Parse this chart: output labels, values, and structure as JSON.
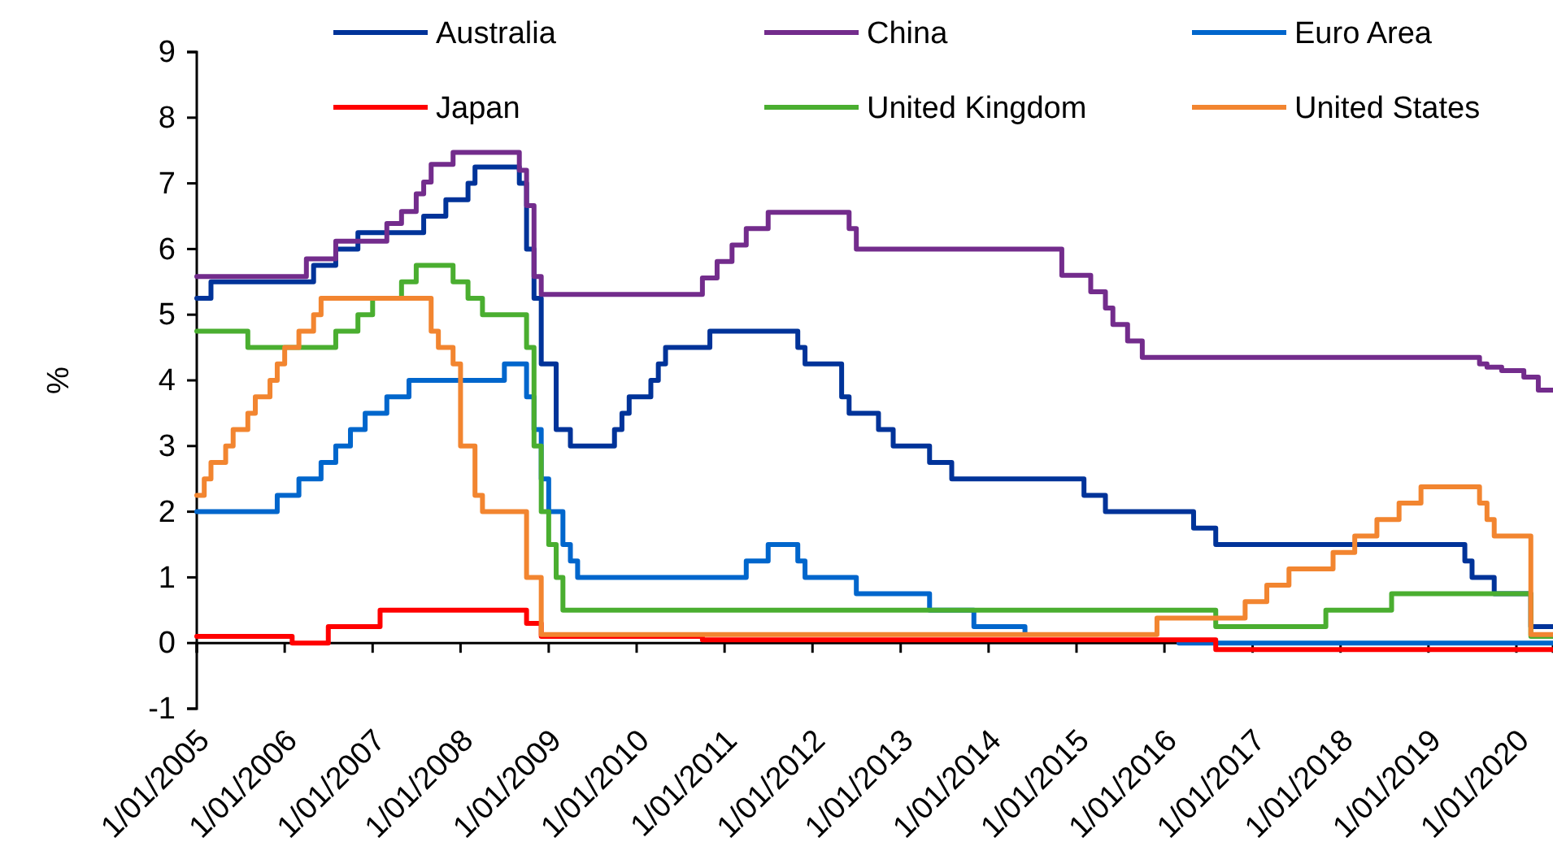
{
  "chart_data": {
    "type": "step",
    "ylabel": "%",
    "xlim": [
      "2005-01",
      "2020-06"
    ],
    "ylim": [
      -1,
      9
    ],
    "yticks": [
      -1,
      0,
      1,
      2,
      3,
      4,
      5,
      6,
      7,
      8,
      9
    ],
    "xticks": [
      {
        "value": "2005-01",
        "label": "1/01/2005"
      },
      {
        "value": "2006-01",
        "label": "1/01/2006"
      },
      {
        "value": "2007-01",
        "label": "1/01/2007"
      },
      {
        "value": "2008-01",
        "label": "1/01/2008"
      },
      {
        "value": "2009-01",
        "label": "1/01/2009"
      },
      {
        "value": "2010-01",
        "label": "1/01/2010"
      },
      {
        "value": "2011-01",
        "label": "1/01/2011"
      },
      {
        "value": "2012-01",
        "label": "1/01/2012"
      },
      {
        "value": "2013-01",
        "label": "1/01/2013"
      },
      {
        "value": "2014-01",
        "label": "1/01/2014"
      },
      {
        "value": "2015-01",
        "label": "1/01/2015"
      },
      {
        "value": "2016-01",
        "label": "1/01/2016"
      },
      {
        "value": "2017-01",
        "label": "1/01/2017"
      },
      {
        "value": "2018-01",
        "label": "1/01/2018"
      },
      {
        "value": "2019-01",
        "label": "1/01/2019"
      },
      {
        "value": "2020-01",
        "label": "1/01/2020"
      }
    ],
    "grid": false,
    "legend": "top",
    "marker": "none",
    "line_style": "solid",
    "series": [
      {
        "name": "Australia",
        "color": "#003399",
        "x": [
          "2005-01",
          "2005-03",
          "2006-05",
          "2006-08",
          "2006-11",
          "2007-08",
          "2007-11",
          "2008-02",
          "2008-03",
          "2008-09",
          "2008-10",
          "2008-11",
          "2008-12",
          "2009-02",
          "2009-04",
          "2009-10",
          "2009-11",
          "2009-12",
          "2010-03",
          "2010-04",
          "2010-05",
          "2010-11",
          "2011-11",
          "2011-12",
          "2012-05",
          "2012-06",
          "2012-10",
          "2012-12",
          "2013-05",
          "2013-08",
          "2015-02",
          "2015-05",
          "2016-05",
          "2016-08",
          "2019-06",
          "2019-07",
          "2019-10",
          "2020-03",
          "2020-06"
        ],
        "values": [
          5.25,
          5.5,
          5.75,
          6.0,
          6.25,
          6.5,
          6.75,
          7.0,
          7.25,
          7.0,
          6.0,
          5.25,
          4.25,
          3.25,
          3.0,
          3.25,
          3.5,
          3.75,
          4.0,
          4.25,
          4.5,
          4.75,
          4.5,
          4.25,
          3.75,
          3.5,
          3.25,
          3.0,
          2.75,
          2.5,
          2.25,
          2.0,
          1.75,
          1.5,
          1.25,
          1.0,
          0.75,
          0.25,
          0.25
        ]
      },
      {
        "name": "China",
        "color": "#732c8c",
        "x": [
          "2005-01",
          "2006-04",
          "2006-08",
          "2007-03",
          "2007-05",
          "2007-07",
          "2007-08",
          "2007-09",
          "2007-12",
          "2008-09",
          "2008-10",
          "2008-11",
          "2008-12",
          "2010-10",
          "2010-12",
          "2011-02",
          "2011-04",
          "2011-07",
          "2012-06",
          "2012-07",
          "2014-11",
          "2015-03",
          "2015-05",
          "2015-06",
          "2015-08",
          "2015-10",
          "2019-08",
          "2019-09",
          "2019-11",
          "2020-02",
          "2020-04",
          "2020-06"
        ],
        "values": [
          5.58,
          5.85,
          6.12,
          6.39,
          6.57,
          6.84,
          7.02,
          7.29,
          7.47,
          7.2,
          6.66,
          5.58,
          5.31,
          5.56,
          5.81,
          6.06,
          6.31,
          6.56,
          6.31,
          6.0,
          5.6,
          5.35,
          5.1,
          4.85,
          4.6,
          4.35,
          4.25,
          4.2,
          4.15,
          4.05,
          3.85,
          3.85
        ]
      },
      {
        "name": "Euro Area",
        "color": "#0066cc",
        "x": [
          "2005-01",
          "2005-12",
          "2006-03",
          "2006-06",
          "2006-08",
          "2006-10",
          "2006-12",
          "2007-03",
          "2007-06",
          "2008-07",
          "2008-10",
          "2008-11",
          "2008-12",
          "2009-01",
          "2009-03",
          "2009-04",
          "2009-05",
          "2011-04",
          "2011-07",
          "2011-11",
          "2011-12",
          "2012-07",
          "2013-05",
          "2013-11",
          "2014-06",
          "2014-09",
          "2016-03",
          "2020-06"
        ],
        "values": [
          2.0,
          2.25,
          2.5,
          2.75,
          3.0,
          3.25,
          3.5,
          3.75,
          4.0,
          4.25,
          3.75,
          3.25,
          2.5,
          2.0,
          1.5,
          1.25,
          1.0,
          1.25,
          1.5,
          1.25,
          1.0,
          0.75,
          0.5,
          0.25,
          0.15,
          null,
          0.0,
          0.0
        ]
      },
      {
        "name": "Japan",
        "color": "#ff0000",
        "x": [
          "2005-01",
          "2006-02",
          "2006-07",
          "2007-02",
          "2008-10",
          "2008-12",
          "2010-10",
          "2016-08",
          "2020-06"
        ],
        "values": [
          0.1,
          0.0,
          0.25,
          0.5,
          0.3,
          0.1,
          0.05,
          -0.1,
          -0.1
        ]
      },
      {
        "name": "United Kingdom",
        "color": "#4aae30",
        "x": [
          "2005-01",
          "2005-08",
          "2006-08",
          "2006-11",
          "2007-01",
          "2007-05",
          "2007-07",
          "2007-12",
          "2008-02",
          "2008-04",
          "2008-10",
          "2008-11",
          "2008-12",
          "2009-01",
          "2009-02",
          "2009-03",
          "2016-08",
          "2017-11",
          "2018-08",
          "2020-03",
          "2020-06"
        ],
        "values": [
          4.75,
          4.5,
          4.75,
          5.0,
          5.25,
          5.5,
          5.75,
          5.5,
          5.25,
          5.0,
          4.5,
          3.0,
          2.0,
          1.5,
          1.0,
          0.5,
          0.25,
          0.5,
          0.75,
          0.1,
          0.1
        ]
      },
      {
        "name": "United States",
        "color": "#f28530",
        "x": [
          "2005-01",
          "2005-02",
          "2005-03",
          "2005-05",
          "2005-06",
          "2005-08",
          "2005-09",
          "2005-11",
          "2005-12",
          "2006-01",
          "2006-03",
          "2006-05",
          "2006-06",
          "2007-09",
          "2007-10",
          "2007-12",
          "2008-01",
          "2008-03",
          "2008-04",
          "2008-10",
          "2008-12",
          "2015-12",
          "2016-12",
          "2017-03",
          "2017-06",
          "2017-12",
          "2018-03",
          "2018-06",
          "2018-09",
          "2018-12",
          "2019-08",
          "2019-09",
          "2019-10",
          "2020-03",
          "2020-06"
        ],
        "values": [
          2.25,
          2.5,
          2.75,
          3.0,
          3.25,
          3.5,
          3.75,
          4.0,
          4.25,
          4.5,
          4.75,
          5.0,
          5.25,
          4.75,
          4.5,
          4.25,
          3.0,
          2.25,
          2.0,
          1.0,
          0.13,
          0.38,
          0.63,
          0.88,
          1.13,
          1.38,
          1.63,
          1.88,
          2.13,
          2.38,
          2.13,
          1.88,
          1.63,
          0.13,
          0.13
        ]
      }
    ]
  }
}
